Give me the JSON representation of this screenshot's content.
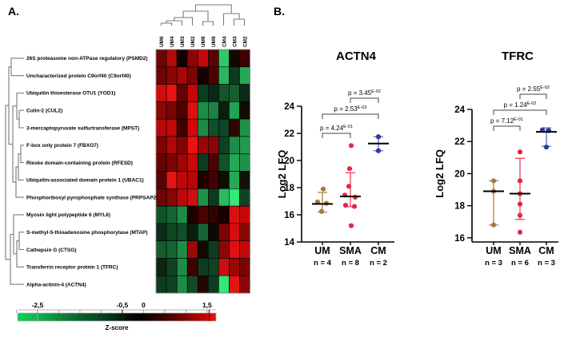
{
  "panels": {
    "a_label": "A.",
    "b_label": "B."
  },
  "chart_data": [
    {
      "type": "heatmap",
      "name": "protein-zscore-heatmap",
      "columns": [
        "UM6",
        "UM4",
        "UM3",
        "UM2",
        "UM8",
        "UM9",
        "CM4",
        "CM3",
        "CM2"
      ],
      "rows": [
        "26S proteasome non-ATPase regulatory (PSMD2)",
        "Uncharacterized protein C9orf40 (C9orf40)",
        "Ubiquitin thioesterase OTU1 (YOD1)",
        "Culin-2 (CUL2)",
        "3-mercaptopyruvate sulfurtransferase (MPST)",
        "F-box only protein 7 (FBXO7)",
        "Rieske domain-containing protein (RFESD)",
        "Ubiquitin-associated domain protein 1 (UBAC1)",
        "Phosphoribosyl pyrophosphate synthase (PRPSAP2)",
        "Myosin light polypeptide 6 (MYL6)",
        "S-methyl-5-thioadenosine phosphorylase (MTAP)",
        "Cathepsin G (CTSG)",
        "Transferrin receptor protein 1 (TFRC)",
        "Alpha-actinin-4 (ACTN4)"
      ],
      "cell_colors": [
        [
          "#6e0505",
          "#b40a0a",
          "#140000",
          "#8c0606",
          "#c40808",
          "#5a0303",
          "#2fca68",
          "#120a02",
          "#400000"
        ],
        [
          "#700404",
          "#8e0505",
          "#a80707",
          "#7a0404",
          "#180000",
          "#4c0202",
          "#2db55e",
          "#0c3a1e",
          "#25a854"
        ],
        [
          "#d40b0b",
          "#e81414",
          "#620303",
          "#c40808",
          "#0d3d20",
          "#0a2815",
          "#14532b",
          "#175d30",
          "#0b2c17"
        ],
        [
          "#8c0606",
          "#7c0404",
          "#4e0202",
          "#e01010",
          "#1e8c48",
          "#1c8242",
          "#081f10",
          "#22a254",
          "#0e0e06"
        ],
        [
          "#ba0808",
          "#c40808",
          "#3e0101",
          "#d00a0a",
          "#1d8a46",
          "#114e29",
          "#0e4624",
          "#2e0801",
          "#1e9249"
        ],
        [
          "#7e0404",
          "#b00808",
          "#820505",
          "#e81414",
          "#9a0606",
          "#8c0606",
          "#0e4121",
          "#1e8c48",
          "#1f9a4e"
        ],
        [
          "#680303",
          "#7e0404",
          "#a00606",
          "#c80a0a",
          "#0d3b1f",
          "#4c0202",
          "#125429",
          "#24aa56",
          "#1e9249"
        ],
        [
          "#580202",
          "#e41414",
          "#c00808",
          "#b40808",
          "#200000",
          "#440101",
          "#0e0e02",
          "#24aa56",
          "#121208"
        ],
        [
          "#700404",
          "#860505",
          "#c00808",
          "#cc1010",
          "#1e9249",
          "#0d3b1f",
          "#2aba5e",
          "#32e87a",
          "#0e4624"
        ],
        [
          "#125429",
          "#166633",
          "#1e8c48",
          "#1e0000",
          "#480202",
          "#340101",
          "#160000",
          "#da1010",
          "#c80808"
        ],
        [
          "#0b2c17",
          "#0e4624",
          "#114e29",
          "#081f10",
          "#166633",
          "#0c0c04",
          "#7a0404",
          "#d80c0c",
          "#8c0606"
        ],
        [
          "#155c2e",
          "#166633",
          "#1e8c48",
          "#9c0606",
          "#140800",
          "#0d3d20",
          "#8c0606",
          "#e01010",
          "#c40808"
        ],
        [
          "#0f2412",
          "#114222",
          "#1e8c48",
          "#3e0101",
          "#0d3d20",
          "#114222",
          "#c81010",
          "#9a0606",
          "#780404"
        ],
        [
          "#0d3d20",
          "#114222",
          "#1e8c48",
          "#124826",
          "#220800",
          "#0d3d20",
          "#32e87a",
          "#e41414",
          "#8c0606"
        ]
      ],
      "col_dendrogram": [
        "201.5,32 201.5,29 214.5,29 214.5,32",
        "208,29 208,26 227.5,26 227.5,32",
        "217.8,26 217.8,22 240.5,22 240.5,32",
        "253.5,32 253.5,27 266.5,27 266.5,32",
        "229.1,22 229.1,14 260,14 260,27",
        "292.5,32 292.5,24 305.5,24 305.5,32",
        "279.5,32 279.5,17 299,17 299,24",
        "244.5,14 244.5,6 289.2,6 289.2,17"
      ],
      "row_dendrogram": [
        "30,72.9 14,72.9 14,94.7 30,94.7",
        "30,138.2 24,138.2 24,160 30,160",
        "30,116.5 21,116.5 21,149.1 24,149.1",
        "30,181.8 26,181.8 26,203.6 30,203.6",
        "26,192.7 23,192.7 23,225.4 30,225.4",
        "23,209.1 20,209.1 20,247.1 30,247.1",
        "21,132.8 16,132.8 16,228.1 20,228.1",
        "14,83.8 11,83.8 11,180.5 16,180.5",
        "30,290.7 24,290.7 24,312.5 30,312.5",
        "24,301.6 21,301.6 21,334.3 30,334.3",
        "30,268.9 17,268.9 17,318 21,318",
        "17,293.5 13,293.5 13,356.1 30,356.1",
        "11,132.1 7,132.1 7,324.8 13,324.8"
      ],
      "colorbar": {
        "label": "Z-score",
        "tick_labels": [
          "-2,5",
          "-0,5",
          "0",
          "1,5"
        ],
        "tick_values": [
          -2.5,
          -0.5,
          0,
          1.5
        ],
        "range": [
          -2.97,
          1.71
        ],
        "gradient": [
          "#0ad456",
          "#12b04e",
          "#0b6b31",
          "#073a1c",
          "#030a04",
          "#0a0100",
          "#2e0300",
          "#700300",
          "#b80500",
          "#ee1010"
        ]
      }
    },
    {
      "type": "scatter",
      "title": "ACTN4",
      "ylabel": "Log2 LFQ",
      "ylim": [
        14,
        24
      ],
      "yticks": [
        24,
        22,
        20,
        18,
        16,
        14
      ],
      "groups": [
        {
          "label": "UM",
          "n_label": "n = 4",
          "color": "#a8793c",
          "bar_color": "#b4894e",
          "mean": 16.8,
          "err_lo": 16.2,
          "err_hi": 17.65,
          "points": [
            {
              "v": 17.9,
              "dx": 1
            },
            {
              "v": 16.95,
              "dx": -6
            },
            {
              "v": 16.85,
              "dx": 5
            },
            {
              "v": 16.25,
              "dx": -1
            }
          ]
        },
        {
          "label": "SMA",
          "n_label": "n = 8",
          "color": "#e22749",
          "bar_color": "#ee4d66",
          "mean": 17.35,
          "err_lo": 16.6,
          "err_hi": 19.1,
          "points": [
            {
              "v": 21.1,
              "dx": 1
            },
            {
              "v": 19.4,
              "dx": -1
            },
            {
              "v": 18.1,
              "dx": -2
            },
            {
              "v": 17.45,
              "dx": -7
            },
            {
              "v": 17.3,
              "dx": 6
            },
            {
              "v": 16.7,
              "dx": -6
            },
            {
              "v": 16.62,
              "dx": 5
            },
            {
              "v": 15.2,
              "dx": 1
            }
          ]
        },
        {
          "label": "CM",
          "n_label": "n = 2",
          "color": "#2e3a99",
          "bar_color": "#6674cc",
          "mean": 21.25,
          "err_lo": 20.72,
          "err_hi": 21.75,
          "points": [
            {
              "v": 21.75,
              "dx": 0
            },
            {
              "v": 20.72,
              "dx": 0
            }
          ]
        }
      ],
      "comparisons": [
        {
          "text": "p = 4.24",
          "sup": "E-01",
          "from": 0,
          "to": 1,
          "level": 0
        },
        {
          "text": "p = 2.53",
          "sup": "E-03",
          "from": 0,
          "to": 2,
          "level": 1
        },
        {
          "text": "p = 3.45",
          "sup": "E-02",
          "from": 1,
          "to": 2,
          "level": 2
        }
      ]
    },
    {
      "type": "scatter",
      "title": "TFRC",
      "ylabel": "Log2 LFQ",
      "ylim": [
        16,
        24
      ],
      "yticks": [
        24,
        22,
        20,
        18,
        16
      ],
      "groups": [
        {
          "label": "UM",
          "n_label": "n = 3",
          "color": "#a8793c",
          "bar_color": "#b4894e",
          "mean": 18.9,
          "err_lo": 16.8,
          "err_hi": 19.55,
          "points": [
            {
              "v": 19.55,
              "dx": 0
            },
            {
              "v": 18.9,
              "dx": 0
            },
            {
              "v": 16.8,
              "dx": 0
            }
          ]
        },
        {
          "label": "SMA",
          "n_label": "n = 6",
          "color": "#e22749",
          "bar_color": "#ee4d66",
          "mean": 18.75,
          "err_lo": 17.15,
          "err_hi": 20.95,
          "points": [
            {
              "v": 21.35,
              "dx": 0
            },
            {
              "v": 19.55,
              "dx": 0
            },
            {
              "v": 18.75,
              "dx": 0
            },
            {
              "v": 18.1,
              "dx": 0
            },
            {
              "v": 17.4,
              "dx": 0
            },
            {
              "v": 16.35,
              "dx": 0
            }
          ]
        },
        {
          "label": "CM",
          "n_label": "n = 3",
          "color": "#2e3a99",
          "bar_color": "#6674cc",
          "mean": 22.6,
          "err_lo": 21.7,
          "err_hi": 22.85,
          "points": [
            {
              "v": 22.72,
              "dx": -5
            },
            {
              "v": 22.68,
              "dx": 3
            },
            {
              "v": 21.65,
              "dx": 0
            }
          ]
        }
      ],
      "comparisons": [
        {
          "text": "p = 7.12",
          "sup": "E-01",
          "from": 0,
          "to": 1,
          "level": 0
        },
        {
          "text": "p = 1.24",
          "sup": "E-02",
          "from": 0,
          "to": 2,
          "level": 1
        },
        {
          "text": "p = 2.55",
          "sup": "E-02",
          "from": 1,
          "to": 2,
          "level": 2
        }
      ]
    }
  ]
}
